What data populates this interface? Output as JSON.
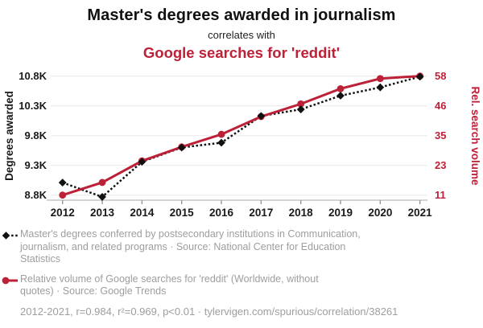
{
  "header": {
    "title": "Master's degrees awarded in journalism",
    "connector": "correlates with",
    "subtitle": "Google searches for 'reddit'"
  },
  "colors": {
    "accent_red": "#bd2138",
    "series_black": "#111111",
    "muted_text": "#9e9e9e",
    "grid": "#ececec",
    "axis_line": "#c6c6c6",
    "tick_mark": "#999999"
  },
  "chart_data": {
    "type": "line",
    "title": "Master's degrees awarded in journalism correlates with Google searches for 'reddit'",
    "x": [
      2012,
      2013,
      2014,
      2015,
      2016,
      2017,
      2018,
      2019,
      2020,
      2021
    ],
    "x_ticks": [
      "2012",
      "2013",
      "2014",
      "2015",
      "2016",
      "2017",
      "2018",
      "2019",
      "2020",
      "2021"
    ],
    "grid": "horizontal",
    "legend_position": "bottom",
    "series": [
      {
        "name": "Master's degrees awarded in journalism",
        "axis": "left",
        "style": "dotted",
        "marker": "diamond",
        "color": "#111111",
        "values": [
          9010,
          8770,
          9360,
          9600,
          9680,
          10130,
          10240,
          10470,
          10610,
          10790
        ]
      },
      {
        "name": "Google searches for 'reddit'",
        "axis": "right",
        "style": "solid",
        "marker": "circle",
        "color": "#bd2138",
        "values": [
          11,
          16,
          24.5,
          30,
          35,
          42,
          47,
          53,
          57,
          58
        ]
      }
    ],
    "left_axis": {
      "label": "Degrees awarded",
      "ticks": [
        "10.8K",
        "10.3K",
        "9.8K",
        "9.3K",
        "8.8K"
      ],
      "tick_values": [
        10800,
        10300,
        9800,
        9300,
        8800
      ],
      "range": [
        8800,
        10800
      ]
    },
    "right_axis": {
      "label": "Rel. search volume",
      "ticks": [
        "58",
        "46",
        "35",
        "23",
        "11"
      ],
      "tick_values": [
        58,
        46,
        35,
        23,
        11
      ],
      "range": [
        11,
        58
      ]
    }
  },
  "legend": [
    {
      "series": "degrees",
      "lines": [
        "Master's degrees conferred by postsecondary institutions in Communication,",
        "journalism, and related programs · Source: National Center for Education",
        "Statistics"
      ],
      "text": "Master's degrees conferred by postsecondary institutions in Communication, journalism, and related programs · Source: National Center for Education Statistics"
    },
    {
      "series": "searches",
      "lines": [
        "Relative volume of Google searches for 'reddit' (Worldwide, without",
        "quotes) · Source: Google Trends"
      ],
      "text": "Relative volume of Google searches for 'reddit' (Worldwide, without quotes) · Source: Google Trends"
    }
  ],
  "footer": {
    "stats": "2012-2021, r=0.984, r²=0.969, p<0.01 · tylervigen.com/spurious/correlation/38261"
  }
}
